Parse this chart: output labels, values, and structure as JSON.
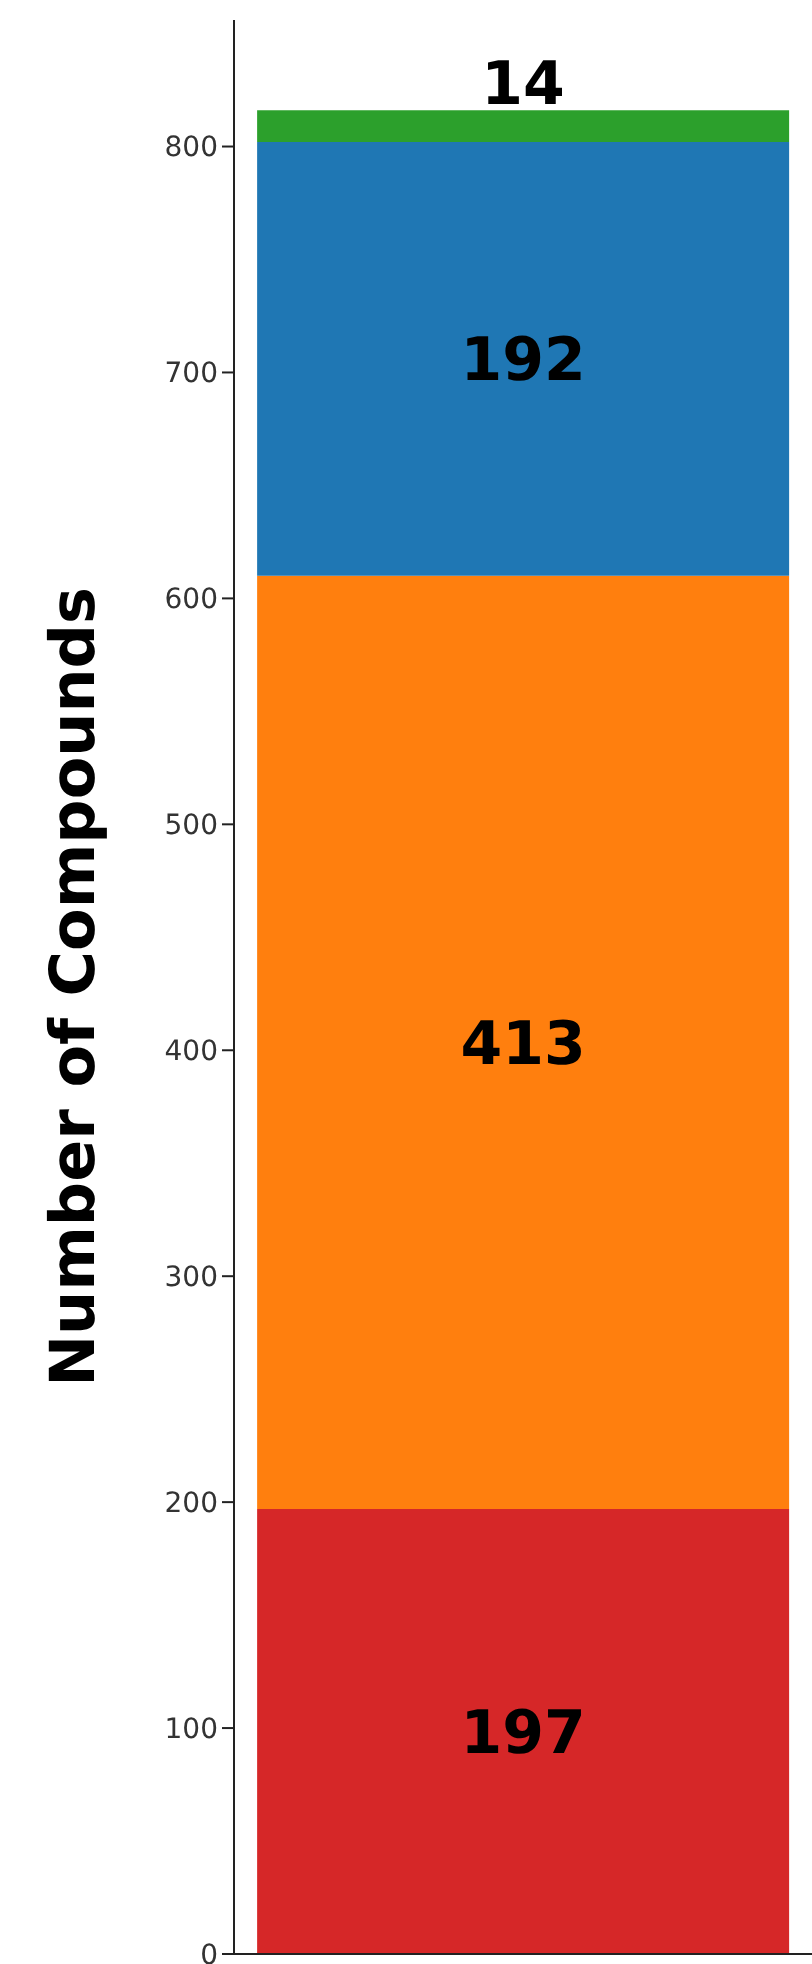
{
  "chart_data": {
    "type": "bar",
    "stacked": true,
    "ylabel": "Number of Compounds",
    "categories": [
      null
    ],
    "series": [
      {
        "color": "#d62728",
        "values": [
          197
        ]
      },
      {
        "color": "#ff7f0e",
        "values": [
          413
        ]
      },
      {
        "color": "#1f77b4",
        "values": [
          192
        ]
      },
      {
        "color": "#2ca02c",
        "values": [
          14
        ]
      }
    ],
    "ylim": [
      0,
      856
    ],
    "yticks": [
      0,
      100,
      200,
      300,
      400,
      500,
      600,
      700,
      800
    ],
    "data_labels": true,
    "tick_labels": "y",
    "grid": false,
    "legend": false
  }
}
